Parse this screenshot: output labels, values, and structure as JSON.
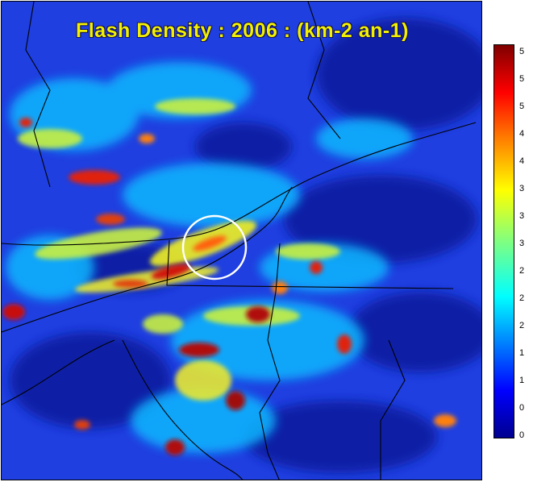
{
  "map": {
    "title": "Flash Density : 2006 : (km-2 an-1)",
    "colormap": [
      "#00008f",
      "#0000ff",
      "#0080ff",
      "#00ffff",
      "#80ff80",
      "#ffff00",
      "#ff8000",
      "#ff0000",
      "#800000"
    ],
    "background_color": "#1f3fe0",
    "boundary_color": "#000000",
    "marker": {
      "shape": "circle",
      "color": "#ffffff"
    }
  },
  "colorbar": {
    "tick_labels": [
      "5",
      "5",
      "5",
      "4",
      "4",
      "3",
      "3",
      "3",
      "2",
      "2",
      "2",
      "1",
      "1",
      "0",
      "0"
    ]
  }
}
